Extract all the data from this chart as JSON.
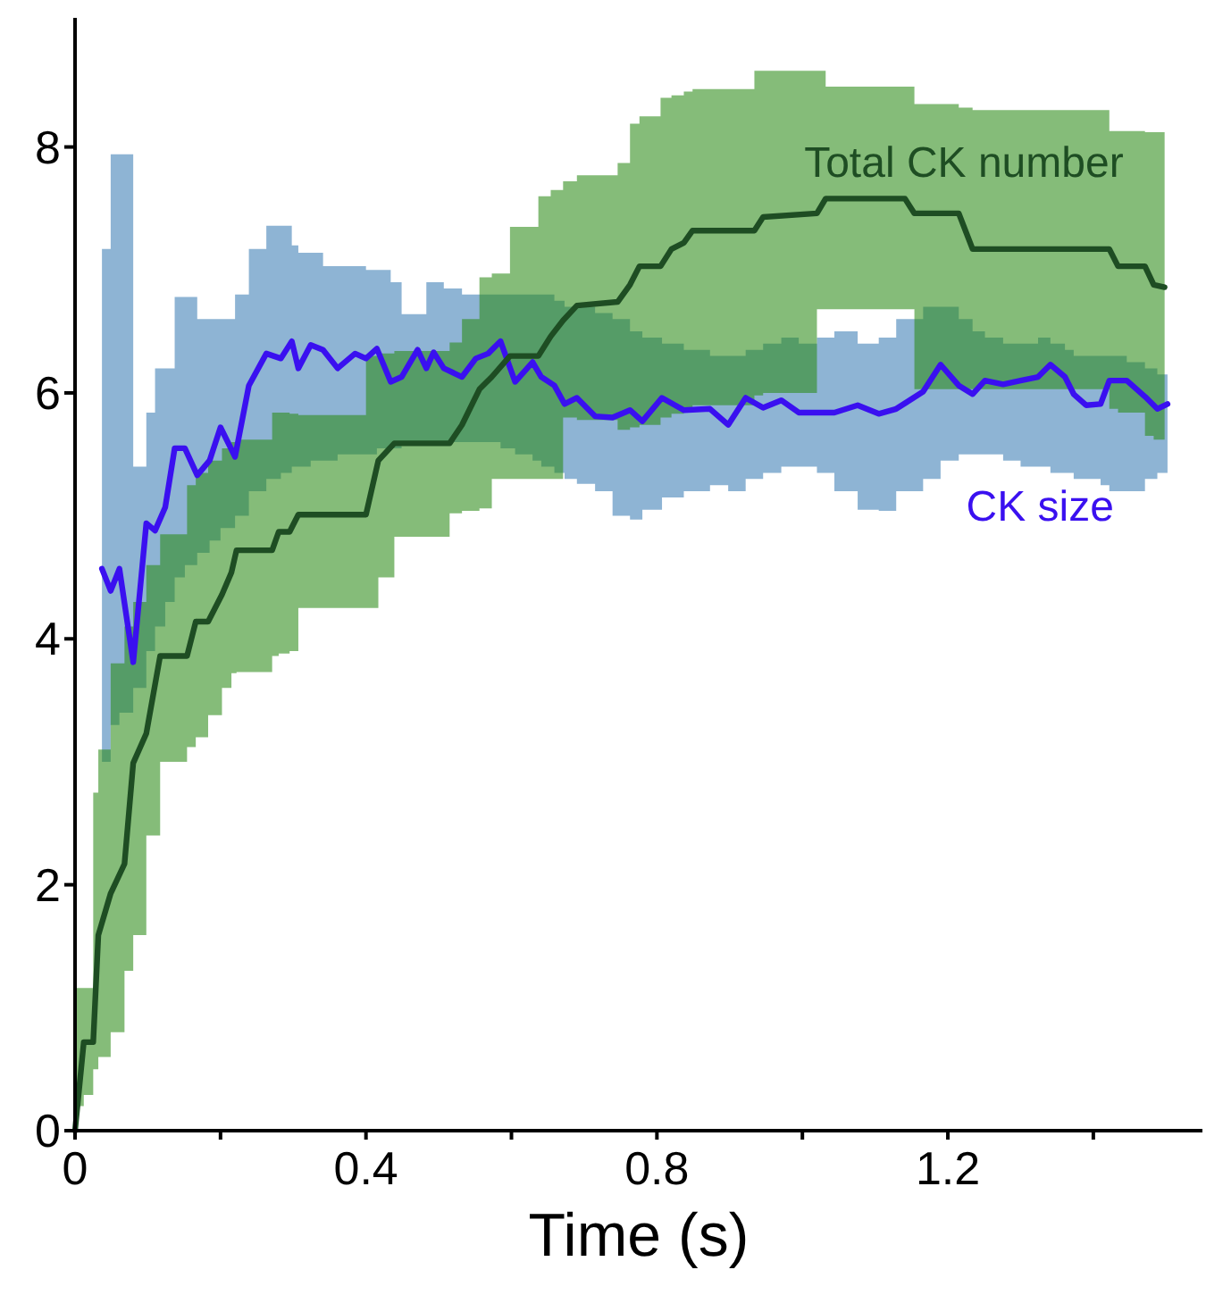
{
  "chart_data": {
    "type": "line",
    "xlabel": "Time (s)",
    "xlim": [
      0,
      1.55
    ],
    "ylim": [
      0,
      9.05
    ],
    "xticks": [
      0,
      {
        "value": 0.2,
        "label": null
      },
      0.4,
      {
        "value": 0.6,
        "label": null
      },
      0.8,
      {
        "value": 1.0,
        "label": null
      },
      1.2,
      {
        "value": 1.4,
        "label": null
      }
    ],
    "yticks": [
      0,
      2,
      4,
      6,
      8
    ],
    "grid": false,
    "marker": "none",
    "line_style": "solid",
    "series": [
      {
        "name": "CK size",
        "color": "#3a10f0",
        "x": [
          0.037,
          0.049,
          0.061,
          0.08,
          0.098,
          0.11,
          0.124,
          0.137,
          0.151,
          0.168,
          0.185,
          0.2,
          0.22,
          0.239,
          0.263,
          0.283,
          0.298,
          0.307,
          0.324,
          0.341,
          0.361,
          0.385,
          0.4,
          0.415,
          0.434,
          0.449,
          0.471,
          0.483,
          0.493,
          0.507,
          0.532,
          0.551,
          0.568,
          0.585,
          0.605,
          0.629,
          0.641,
          0.659,
          0.673,
          0.69,
          0.715,
          0.739,
          0.763,
          0.78,
          0.807,
          0.837,
          0.873,
          0.898,
          0.922,
          0.946,
          0.971,
          0.995,
          1.02,
          1.044,
          1.076,
          1.105,
          1.129,
          1.166,
          1.19,
          1.215,
          1.234,
          1.251,
          1.276,
          1.3,
          1.324,
          1.341,
          1.361,
          1.373,
          1.39,
          1.41,
          1.422,
          1.446,
          1.471,
          1.488,
          1.502
        ],
        "values": [
          4.57,
          4.39,
          4.57,
          3.81,
          4.94,
          4.88,
          5.07,
          5.55,
          5.55,
          5.33,
          5.45,
          5.72,
          5.48,
          6.06,
          6.32,
          6.28,
          6.42,
          6.2,
          6.39,
          6.35,
          6.2,
          6.32,
          6.28,
          6.36,
          6.09,
          6.13,
          6.35,
          6.2,
          6.33,
          6.2,
          6.13,
          6.28,
          6.32,
          6.42,
          6.09,
          6.25,
          6.13,
          6.06,
          5.91,
          5.96,
          5.81,
          5.8,
          5.86,
          5.77,
          5.96,
          5.86,
          5.87,
          5.74,
          5.96,
          5.88,
          5.94,
          5.84,
          5.84,
          5.84,
          5.9,
          5.83,
          5.87,
          6.01,
          6.23,
          6.06,
          5.99,
          6.1,
          6.07,
          6.1,
          6.13,
          6.23,
          6.13,
          5.99,
          5.9,
          5.91,
          6.1,
          6.1,
          5.97,
          5.87,
          5.91
        ],
        "lower": [
          3.0,
          3.3,
          3.4,
          3.6,
          3.9,
          4.1,
          4.3,
          4.5,
          4.6,
          4.7,
          4.8,
          4.9,
          5.0,
          5.2,
          5.3,
          5.35,
          5.4,
          5.4,
          5.45,
          5.45,
          5.5,
          5.5,
          5.5,
          5.55,
          5.55,
          5.6,
          5.6,
          5.6,
          5.6,
          5.6,
          5.6,
          5.6,
          5.6,
          5.55,
          5.5,
          5.45,
          5.4,
          5.35,
          5.3,
          5.26,
          5.2,
          5.0,
          4.97,
          5.05,
          5.15,
          5.2,
          5.25,
          5.2,
          5.3,
          5.35,
          5.4,
          5.4,
          5.35,
          5.2,
          5.05,
          5.04,
          5.2,
          5.3,
          5.45,
          5.5,
          5.5,
          5.5,
          5.45,
          5.4,
          5.4,
          5.35,
          5.35,
          5.3,
          5.3,
          5.25,
          5.2,
          5.2,
          5.3,
          5.35,
          5.4
        ],
        "upper": [
          7.17,
          7.94,
          7.94,
          5.4,
          5.84,
          6.2,
          6.2,
          6.78,
          6.78,
          6.6,
          6.6,
          6.6,
          6.8,
          7.17,
          7.36,
          7.36,
          7.2,
          7.14,
          7.14,
          7.03,
          7.03,
          7.03,
          7.0,
          7.0,
          6.9,
          6.64,
          6.64,
          6.9,
          6.9,
          6.85,
          6.8,
          6.8,
          6.8,
          6.8,
          6.8,
          6.8,
          6.8,
          6.75,
          6.7,
          6.7,
          6.65,
          6.6,
          6.5,
          6.45,
          6.4,
          6.35,
          6.3,
          6.3,
          6.35,
          6.4,
          6.45,
          6.4,
          6.45,
          6.5,
          6.4,
          6.45,
          6.6,
          6.7,
          6.7,
          6.6,
          6.5,
          6.45,
          6.4,
          6.4,
          6.45,
          6.4,
          6.35,
          6.3,
          6.3,
          6.3,
          6.3,
          6.25,
          6.2,
          6.15,
          6.15
        ]
      },
      {
        "name": "Total CK number",
        "color": "#1e4d23",
        "x": [
          0,
          0.012,
          0.025,
          0.032,
          0.049,
          0.068,
          0.08,
          0.098,
          0.117,
          0.154,
          0.166,
          0.183,
          0.202,
          0.215,
          0.222,
          0.271,
          0.28,
          0.295,
          0.307,
          0.4,
          0.417,
          0.439,
          0.515,
          0.532,
          0.556,
          0.573,
          0.598,
          0.637,
          0.654,
          0.671,
          0.69,
          0.746,
          0.763,
          0.776,
          0.805,
          0.82,
          0.837,
          0.849,
          0.934,
          0.946,
          1.02,
          1.032,
          1.141,
          1.154,
          1.215,
          1.234,
          1.422,
          1.434,
          1.471,
          1.483,
          1.498
        ],
        "values": [
          0,
          0.72,
          0.72,
          1.59,
          1.93,
          2.17,
          2.99,
          3.23,
          3.86,
          3.86,
          4.14,
          4.14,
          4.36,
          4.54,
          4.72,
          4.72,
          4.87,
          4.87,
          5.01,
          5.01,
          5.45,
          5.59,
          5.59,
          5.74,
          6.03,
          6.13,
          6.3,
          6.3,
          6.46,
          6.59,
          6.71,
          6.74,
          6.88,
          7.03,
          7.03,
          7.17,
          7.22,
          7.32,
          7.32,
          7.43,
          7.46,
          7.58,
          7.58,
          7.46,
          7.46,
          7.17,
          7.17,
          7.03,
          7.03,
          6.88,
          6.86
        ],
        "lower": [
          0.2,
          0.29,
          0.5,
          0.6,
          0.8,
          1.3,
          1.59,
          2.4,
          3.0,
          3.12,
          3.2,
          3.38,
          3.6,
          3.72,
          3.73,
          3.86,
          3.88,
          3.9,
          4.25,
          4.25,
          4.5,
          4.83,
          5.02,
          5.04,
          5.06,
          5.3,
          5.3,
          5.3,
          5.3,
          5.8,
          5.78,
          5.7,
          5.72,
          5.74,
          5.8,
          5.83,
          5.87,
          5.9,
          5.98,
          6.0,
          6.68,
          6.68,
          6.68,
          6.03,
          6.03,
          6.03,
          5.87,
          5.84,
          5.65,
          5.62,
          5.62
        ],
        "upper": [
          1.16,
          1.16,
          2.75,
          3.1,
          3.8,
          4.1,
          4.3,
          4.6,
          4.85,
          5.25,
          5.35,
          5.45,
          5.55,
          5.6,
          5.62,
          5.84,
          5.84,
          5.83,
          5.82,
          6.3,
          6.32,
          6.34,
          6.41,
          6.6,
          6.94,
          6.97,
          7.35,
          7.6,
          7.65,
          7.72,
          7.77,
          7.87,
          8.19,
          8.25,
          8.4,
          8.42,
          8.45,
          8.47,
          8.62,
          8.62,
          8.62,
          8.49,
          8.49,
          8.35,
          8.32,
          8.3,
          8.13,
          8.13,
          8.12,
          8.12,
          8.12
        ]
      }
    ]
  }
}
